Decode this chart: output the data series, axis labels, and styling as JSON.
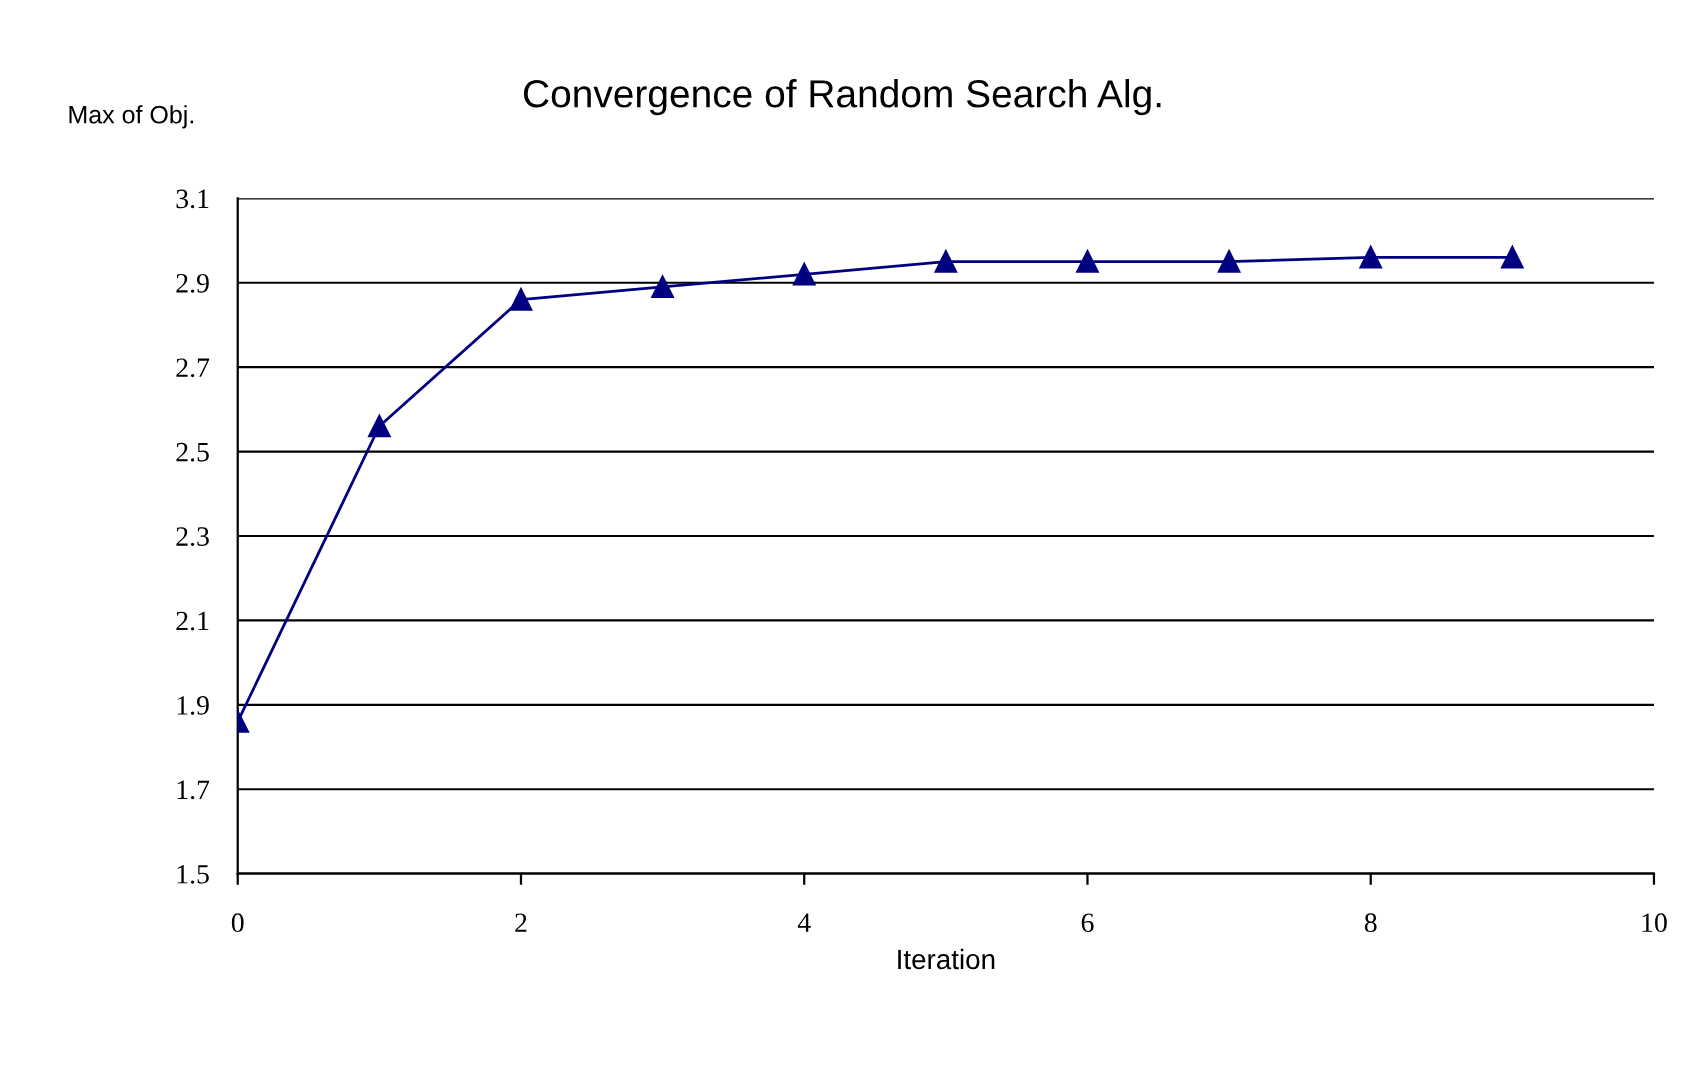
{
  "chart_data": {
    "type": "line",
    "title": "Convergence of Random Search Alg.",
    "xlabel": "Iteration",
    "ylabel": "Max of Obj.",
    "x": [
      0,
      1,
      2,
      3,
      4,
      5,
      6,
      7,
      8,
      9
    ],
    "series": [
      {
        "color": "#000080",
        "values": [
          1.86,
          2.56,
          2.86,
          2.89,
          2.92,
          2.95,
          2.95,
          2.95,
          2.96,
          2.96
        ]
      }
    ],
    "xlim": [
      0,
      10
    ],
    "xticks": [
      0,
      2,
      4,
      6,
      8,
      10
    ],
    "ylim": [
      1.5,
      3.1
    ],
    "yticks": [
      1.5,
      1.7,
      1.9,
      2.1,
      2.3,
      2.5,
      2.7,
      2.9,
      3.1
    ],
    "grid": "y",
    "marker": "triangle",
    "line_style": "solid",
    "legend": false
  }
}
